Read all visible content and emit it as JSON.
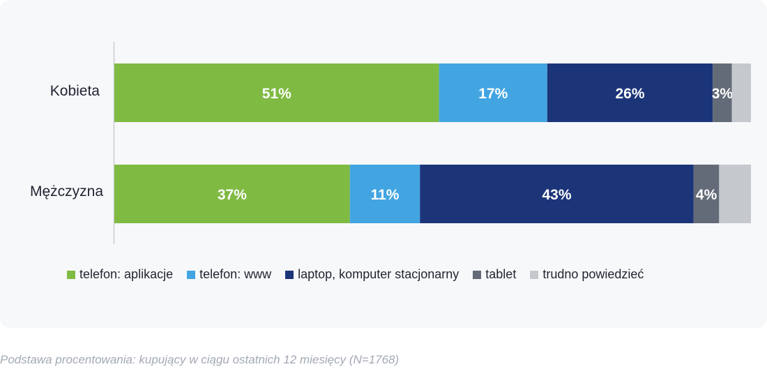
{
  "chart_data": {
    "type": "bar",
    "orientation": "horizontal",
    "stacked": true,
    "categories": [
      "Kobieta",
      "Mężczyzna"
    ],
    "xlim": [
      0,
      100
    ],
    "series": [
      {
        "name": "telefon: aplikacje",
        "color": "#7fba42",
        "values": [
          51,
          37
        ],
        "labels": [
          "51%",
          "37%"
        ]
      },
      {
        "name": "telefon: www",
        "color": "#42a5e2",
        "values": [
          17,
          11
        ],
        "labels": [
          "17%",
          "11%"
        ]
      },
      {
        "name": "laptop, komputer stacjonarny",
        "color": "#1c3579",
        "values": [
          26,
          43
        ],
        "labels": [
          "26%",
          "43%"
        ]
      },
      {
        "name": "tablet",
        "color": "#636b78",
        "values": [
          3,
          4
        ],
        "labels": [
          "3%",
          "4%"
        ]
      },
      {
        "name": "trudno powiedzieć",
        "color": "#c5c8cd",
        "values": [
          3,
          5
        ],
        "labels": [
          "",
          ""
        ]
      }
    ],
    "legend_position": "bottom",
    "grid": false
  },
  "footnote": "Podstawa procentowania: kupujący w ciągu ostatnich 12 miesięcy (N=1768)"
}
